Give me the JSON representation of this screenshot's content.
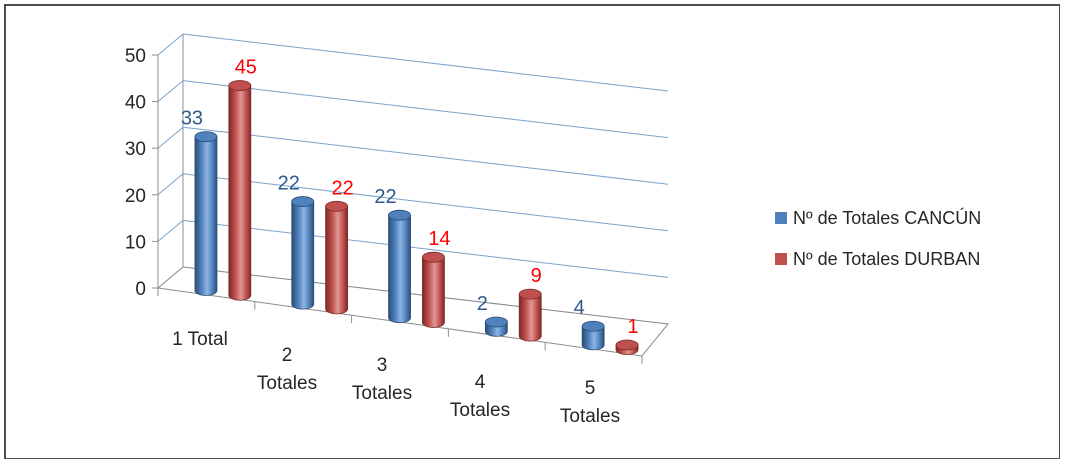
{
  "chart_data": {
    "type": "bar",
    "title": "",
    "xlabel": "",
    "ylabel": "",
    "ylim": [
      0,
      50
    ],
    "yticks": [
      0,
      10,
      20,
      30,
      40,
      50
    ],
    "grid": true,
    "legend_position": "right",
    "categories": [
      [
        "1 Total"
      ],
      [
        "2",
        "Totales"
      ],
      [
        "3",
        "Totales"
      ],
      [
        "4",
        "Totales"
      ],
      [
        "5",
        "Totales"
      ]
    ],
    "series": [
      {
        "name": "Nº de Totales  CANCÚN",
        "values": [
          33,
          22,
          22,
          2,
          4
        ],
        "color": "#4f81bd",
        "dark": "#2c4d75",
        "light": "#8eb4e3",
        "label_color": "#2e5a8e"
      },
      {
        "name": "Nº de Totales  DURBAN",
        "values": [
          45,
          22,
          14,
          9,
          1
        ],
        "color": "#c0504d",
        "dark": "#7b2a28",
        "light": "#e09896",
        "label_color": "#ff0000"
      }
    ]
  }
}
